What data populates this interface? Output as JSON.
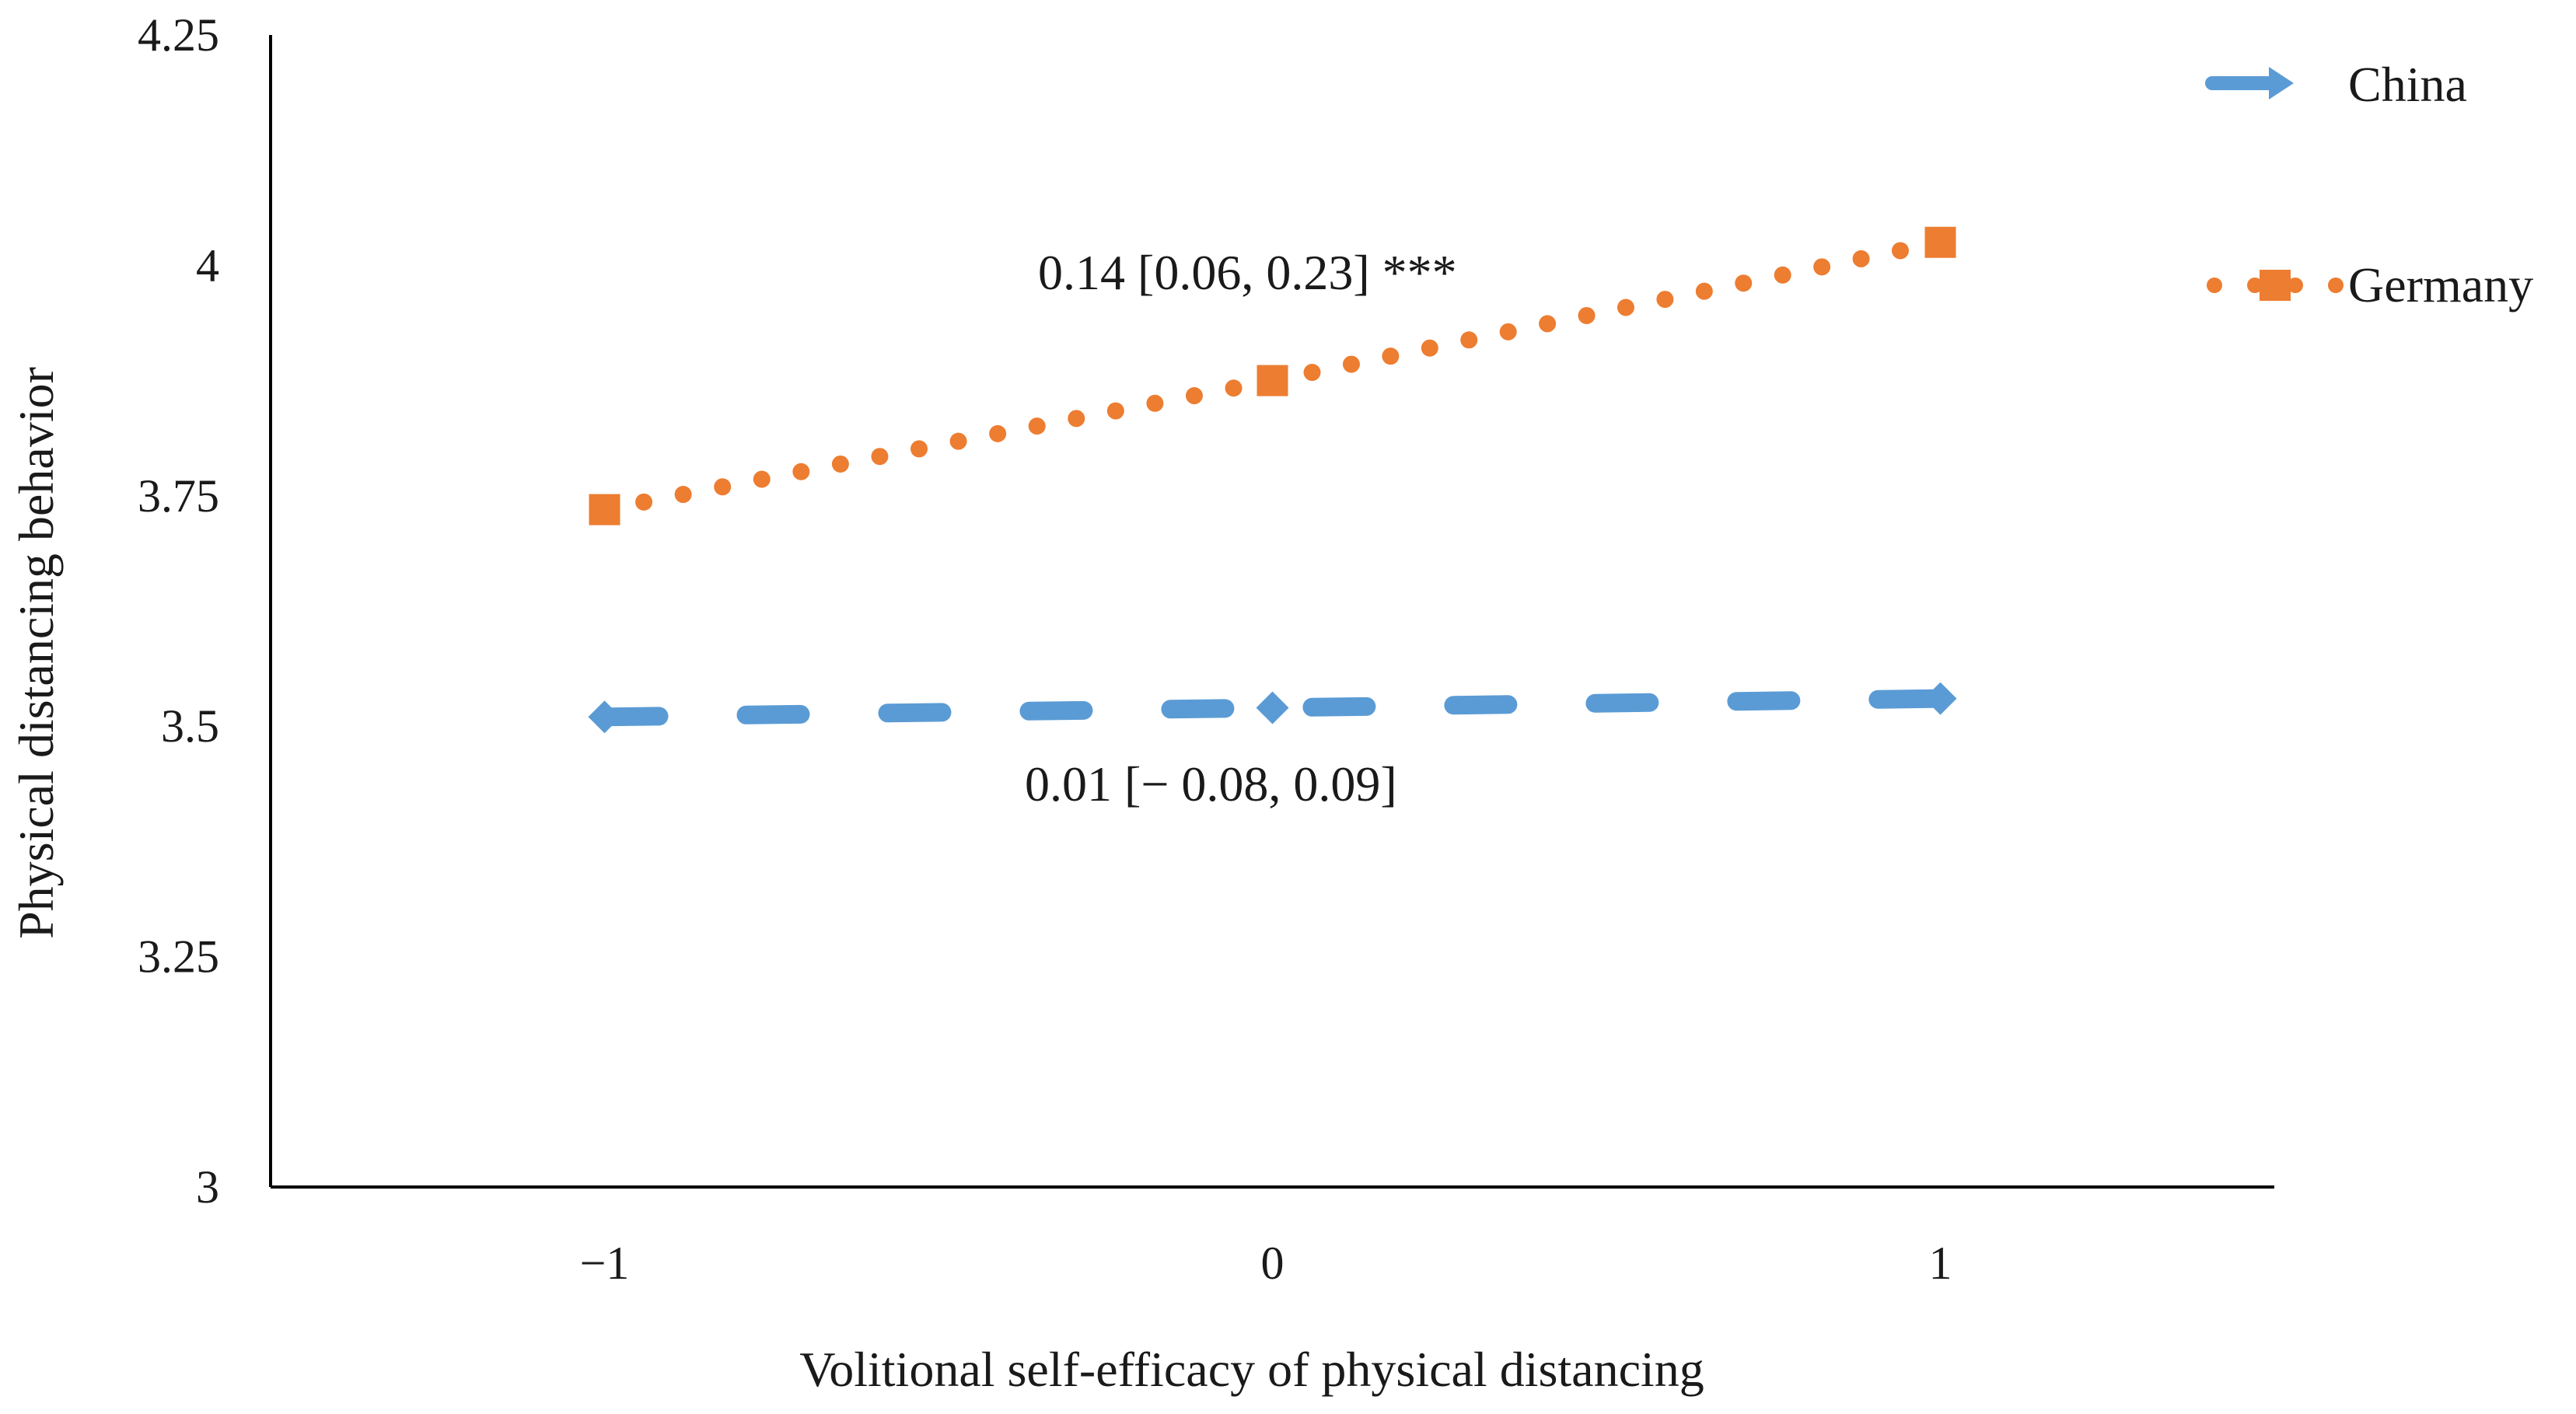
{
  "chart_data": {
    "type": "line",
    "title": "",
    "xlabel": "Volitional self-efficacy of physical distancing",
    "ylabel": "Physical distancing behavior",
    "x": [
      -1,
      0,
      1
    ],
    "x_tick_labels": [
      "−1",
      "0",
      "1"
    ],
    "xlim": [
      -1.5,
      1.5
    ],
    "ylim": [
      3,
      4.25
    ],
    "y_ticks": [
      3,
      3.25,
      3.5,
      3.75,
      4,
      4.25
    ],
    "y_tick_labels": [
      "3",
      "3.25",
      "3.5",
      "3.75",
      "4",
      "4.25"
    ],
    "grid": false,
    "legend_position": "top-right",
    "series": [
      {
        "name": "China",
        "values": [
          3.51,
          3.52,
          3.53
        ],
        "color": "#5b9bd5",
        "line_style": "dashed",
        "marker": "diamond"
      },
      {
        "name": "Germany",
        "values": [
          3.735,
          3.875,
          4.025
        ],
        "color": "#ed7d31",
        "line_style": "dotted",
        "marker": "square"
      }
    ],
    "annotations": [
      {
        "text": "0.14 [0.06, 0.23] ***",
        "series": "Germany"
      },
      {
        "text": "0.01 [− 0.08, 0.09]",
        "series": "China"
      }
    ]
  }
}
